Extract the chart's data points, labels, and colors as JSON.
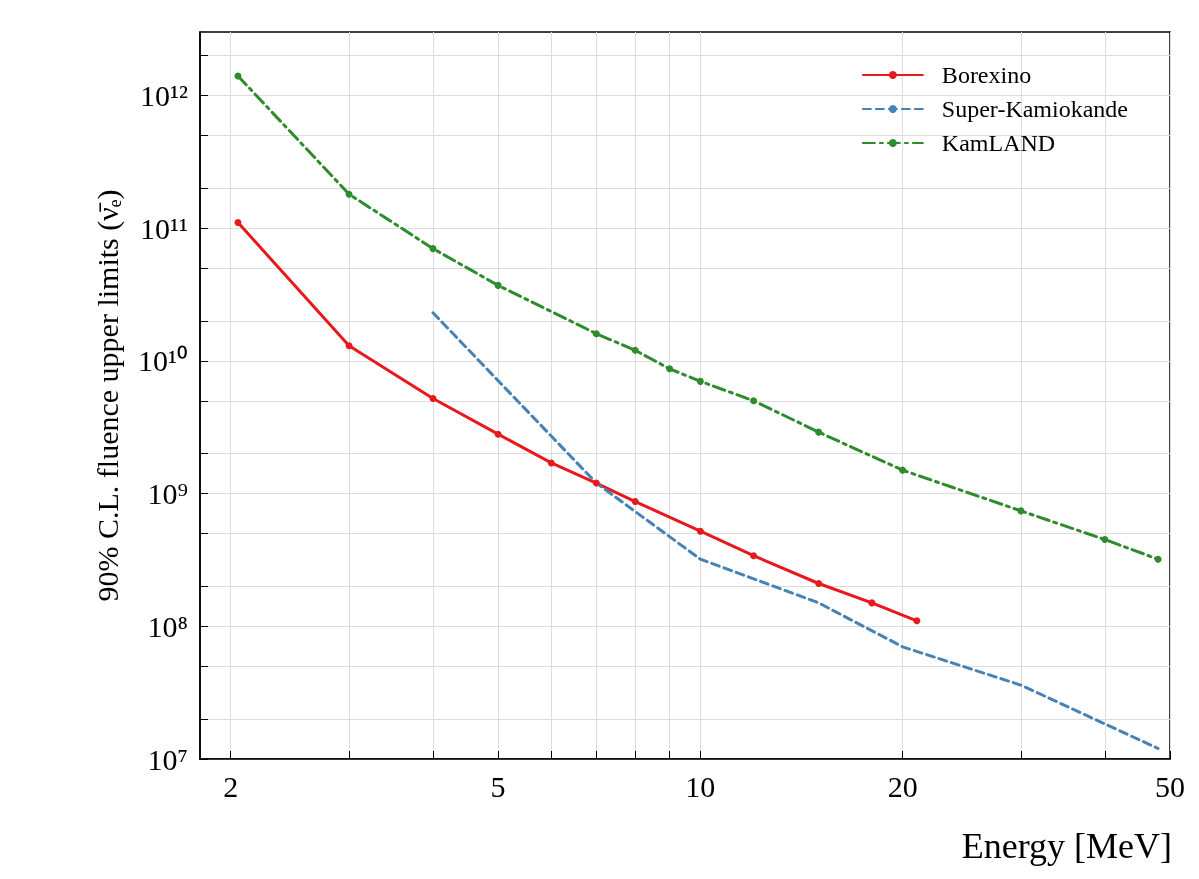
{
  "chart_data": {
    "type": "line",
    "xlabel": "Energy [MeV]",
    "ylabel": "90% C.L. fluence upper limits (ν̄ₑ)",
    "log": "xy",
    "grid": true,
    "legend": "top right",
    "xlim": [
      1.8,
      50
    ],
    "ylim": [
      10000000.0,
      3000000000000.0
    ],
    "xticks": [
      2,
      {
        "value": 3,
        "label": null
      },
      {
        "value": 4,
        "label": null
      },
      5,
      {
        "value": 6,
        "label": null
      },
      {
        "value": 7,
        "label": null
      },
      {
        "value": 8,
        "label": null
      },
      {
        "value": 9,
        "label": null
      },
      10,
      20,
      {
        "value": 30,
        "label": null
      },
      {
        "value": 40,
        "label": null
      },
      50
    ],
    "yticks": [
      {
        "value": 10000000.0,
        "label": "10⁷"
      },
      {
        "value": 20000000.0,
        "label": null
      },
      {
        "value": 50000000.0,
        "label": null
      },
      {
        "value": 100000000.0,
        "label": "10⁸"
      },
      {
        "value": 200000000.0,
        "label": null
      },
      {
        "value": 500000000.0,
        "label": null
      },
      {
        "value": 1000000000.0,
        "label": "10⁹"
      },
      {
        "value": 2000000000.0,
        "label": null
      },
      {
        "value": 5000000000.0,
        "label": null
      },
      {
        "value": 10000000000.0,
        "label": "10¹⁰"
      },
      {
        "value": 20000000000.0,
        "label": null
      },
      {
        "value": 50000000000.0,
        "label": null
      },
      {
        "value": 100000000000.0,
        "label": "10¹¹"
      },
      {
        "value": 200000000000.0,
        "label": null
      },
      {
        "value": 500000000000.0,
        "label": null
      },
      {
        "value": 1000000000000.0,
        "label": "10¹²"
      },
      {
        "value": 2000000000000.0,
        "label": null
      }
    ],
    "series": [
      {
        "name": "Borexino",
        "color": "#e8191c",
        "line_style": "solid",
        "marker": "circle",
        "x": [
          2.05,
          3,
          4,
          5,
          6,
          7,
          8,
          10,
          12,
          15,
          18,
          21
        ],
        "values": [
          110000000000.0,
          13000000000.0,
          5200000000.0,
          2800000000.0,
          1700000000.0,
          1200000000.0,
          870000000.0,
          520000000.0,
          340000000.0,
          210000000.0,
          150000000.0,
          110000000.0
        ]
      },
      {
        "name": "Super-Kamiokande",
        "color": "#4682b4",
        "line_style": "dashed",
        "marker": "none",
        "x": [
          4,
          7,
          10,
          15,
          20,
          30,
          48
        ],
        "values": [
          23000000000.0,
          1200000000.0,
          320000000.0,
          150000000.0,
          70000000.0,
          36000000.0,
          12000000.0
        ]
      },
      {
        "name": "KamLAND",
        "color": "#2e8b2e",
        "line_style": "dashdot",
        "marker": "circle",
        "x": [
          2.05,
          3,
          4,
          5,
          7,
          8,
          9,
          10,
          12,
          15,
          20,
          30,
          40,
          48
        ],
        "values": [
          1400000000000.0,
          180000000000.0,
          70000000000.0,
          37000000000.0,
          16000000000.0,
          12000000000.0,
          8700000000.0,
          7000000000.0,
          5000000000.0,
          2900000000.0,
          1500000000.0,
          740000000.0,
          450000000.0,
          320000000.0
        ]
      }
    ]
  }
}
